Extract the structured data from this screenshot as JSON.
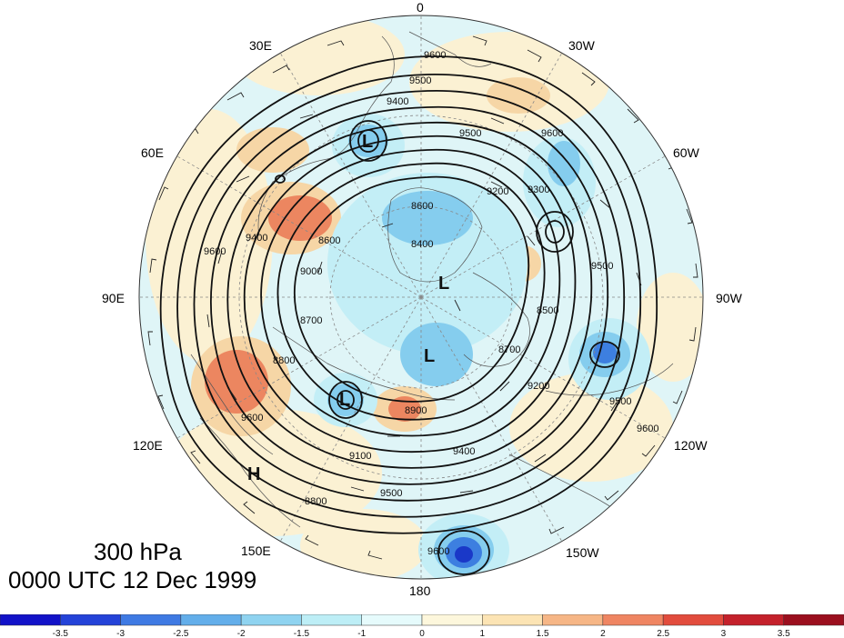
{
  "map": {
    "level_label": "300 hPa",
    "time_label": "0000 UTC 12 Dec 1999",
    "projection": "north polar stereographic",
    "longitude_labels": [
      "0",
      "30W",
      "60W",
      "90W",
      "120W",
      "150W",
      "180",
      "150E",
      "120E",
      "90E",
      "60E",
      "30E"
    ],
    "contour_labels": [
      "9600",
      "9500",
      "9400",
      "9300",
      "9200",
      "9100",
      "9000",
      "8900",
      "8800",
      "8700",
      "8600",
      "8500",
      "8400"
    ],
    "pressure_centers": [
      {
        "type": "L",
        "label": "L"
      },
      {
        "type": "L",
        "label": "L"
      },
      {
        "type": "L",
        "label": "L"
      },
      {
        "type": "L",
        "label": "L"
      },
      {
        "type": "H",
        "label": "H"
      }
    ],
    "colors": {
      "land": "#f5f3e6",
      "ocean_light": "#d9f4f6",
      "contour": "#000000",
      "warm_1": "#fbeecb",
      "warm_2": "#f5c493",
      "warm_3": "#e9704f",
      "cool_1": "#c5eef4",
      "cool_2": "#84cdec",
      "cool_3": "#4a95e3",
      "cool_4": "#1e3fd2"
    }
  },
  "colorbar": {
    "ticks": [
      "-3.5",
      "-3",
      "-2.5",
      "-2",
      "-1.5",
      "-1",
      "0",
      "1",
      "1.5",
      "2",
      "2.5",
      "3",
      "3.5"
    ],
    "colors": [
      "#1212c8",
      "#2443d8",
      "#3f7ae3",
      "#63aeea",
      "#8fd3f0",
      "#bdeef6",
      "#e6fbfc",
      "#fdf7dc",
      "#fce4b4",
      "#f6b686",
      "#ef8562",
      "#e24c3d",
      "#c4212b",
      "#9b0f1e"
    ]
  }
}
